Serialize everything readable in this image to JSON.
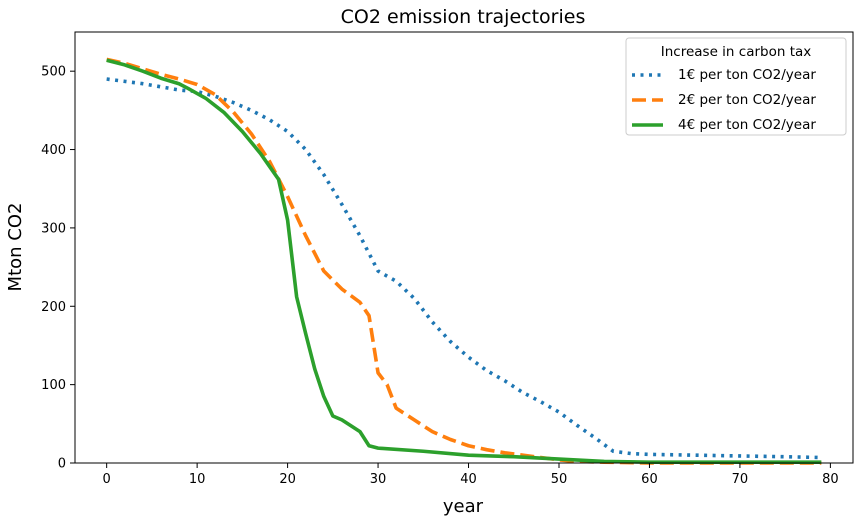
{
  "chart_data": {
    "type": "line",
    "title": "CO2 emission trajectories",
    "xlabel": "year",
    "ylabel": "Mton CO2",
    "xlim": [
      -3.5,
      82.5
    ],
    "ylim": [
      0,
      550
    ],
    "xticks": [
      0,
      10,
      20,
      30,
      40,
      50,
      60,
      70,
      80
    ],
    "yticks": [
      0,
      100,
      200,
      300,
      400,
      500
    ],
    "grid": false,
    "legend": {
      "title": "Increase in carbon tax",
      "location": "top-right"
    },
    "series": [
      {
        "name": "1€ per ton CO2/year",
        "color": "#1f77b4",
        "style": "dotted",
        "points": [
          [
            0,
            490
          ],
          [
            2,
            487
          ],
          [
            4,
            484
          ],
          [
            6,
            480
          ],
          [
            8,
            476
          ],
          [
            10,
            474
          ],
          [
            12,
            468
          ],
          [
            14,
            460
          ],
          [
            16,
            450
          ],
          [
            18,
            438
          ],
          [
            20,
            423
          ],
          [
            22,
            400
          ],
          [
            24,
            368
          ],
          [
            26,
            330
          ],
          [
            28,
            290
          ],
          [
            30,
            245
          ],
          [
            32,
            232
          ],
          [
            34,
            210
          ],
          [
            36,
            180
          ],
          [
            38,
            155
          ],
          [
            40,
            135
          ],
          [
            42,
            118
          ],
          [
            44,
            105
          ],
          [
            46,
            90
          ],
          [
            48,
            78
          ],
          [
            50,
            65
          ],
          [
            52,
            48
          ],
          [
            54,
            32
          ],
          [
            56,
            15
          ],
          [
            58,
            12
          ],
          [
            60,
            11
          ],
          [
            65,
            10
          ],
          [
            70,
            9
          ],
          [
            75,
            8
          ],
          [
            79,
            7
          ]
        ]
      },
      {
        "name": "2€ per ton CO2/year",
        "color": "#ff7f0e",
        "style": "dashed",
        "points": [
          [
            0,
            515
          ],
          [
            2,
            510
          ],
          [
            4,
            503
          ],
          [
            6,
            496
          ],
          [
            8,
            490
          ],
          [
            10,
            483
          ],
          [
            12,
            470
          ],
          [
            14,
            448
          ],
          [
            16,
            420
          ],
          [
            18,
            385
          ],
          [
            20,
            340
          ],
          [
            22,
            290
          ],
          [
            24,
            245
          ],
          [
            26,
            222
          ],
          [
            28,
            205
          ],
          [
            29,
            188
          ],
          [
            30,
            115
          ],
          [
            31,
            100
          ],
          [
            32,
            70
          ],
          [
            34,
            55
          ],
          [
            36,
            40
          ],
          [
            38,
            30
          ],
          [
            40,
            22
          ],
          [
            42,
            17
          ],
          [
            44,
            13
          ],
          [
            46,
            10
          ],
          [
            48,
            7
          ],
          [
            50,
            4
          ],
          [
            52,
            2
          ],
          [
            55,
            1
          ],
          [
            60,
            0
          ],
          [
            70,
            0
          ],
          [
            79,
            0
          ]
        ]
      },
      {
        "name": "4€ per ton CO2/year",
        "color": "#2ca02c",
        "style": "solid",
        "points": [
          [
            0,
            514
          ],
          [
            2,
            508
          ],
          [
            4,
            500
          ],
          [
            6,
            491
          ],
          [
            8,
            484
          ],
          [
            9,
            478
          ],
          [
            11,
            465
          ],
          [
            13,
            447
          ],
          [
            15,
            423
          ],
          [
            17,
            395
          ],
          [
            19,
            362
          ],
          [
            20,
            310
          ],
          [
            21,
            212
          ],
          [
            22,
            165
          ],
          [
            23,
            120
          ],
          [
            24,
            85
          ],
          [
            25,
            60
          ],
          [
            26,
            55
          ],
          [
            28,
            40
          ],
          [
            29,
            22
          ],
          [
            30,
            19
          ],
          [
            35,
            15
          ],
          [
            40,
            10
          ],
          [
            45,
            8
          ],
          [
            50,
            5
          ],
          [
            55,
            2
          ],
          [
            60,
            1
          ],
          [
            70,
            1
          ],
          [
            79,
            1
          ]
        ]
      }
    ]
  }
}
